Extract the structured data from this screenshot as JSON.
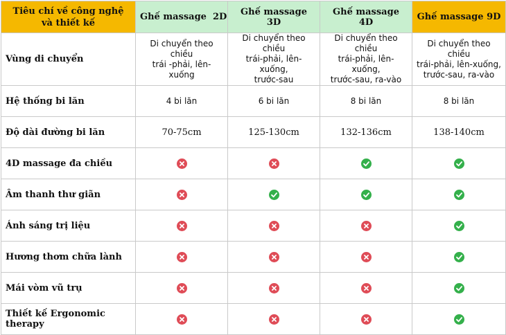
{
  "colors": {
    "header_gold": "#f5b800",
    "header_green": "#c8efcf",
    "no_icon": "#df4c57",
    "yes_icon": "#34b04b"
  },
  "header": {
    "criteria_line1": "Tiêu chí về công nghệ",
    "criteria_line2": "và thiết kế",
    "col_2d": "Ghế massage  2D",
    "col_3d": "Ghế massage 3D",
    "col_4d": "Ghế massage 4D",
    "col_9d": "Ghế massage 9D"
  },
  "rows": [
    {
      "label": "Vùng di chuyển",
      "v2d": [
        "Di chuyển theo chiều",
        "trái -phải, lên-xuống"
      ],
      "v3d": [
        "Di chuyển theo chiều",
        "trái-phải, lên-xuống,",
        "trước-sau"
      ],
      "v4d": [
        "Di chuyển theo chiều",
        "trái-phải, lên-xuống,",
        "trước-sau, ra-vào"
      ],
      "v9d": [
        "Di chuyển theo chiều",
        "trái-phải, lên-xuống,",
        "trước-sau, ra-vào"
      ]
    },
    {
      "label": "Hệ thống bi lăn",
      "v2d": "4 bi lăn",
      "v3d": "6 bi lăn",
      "v4d": "8 bi lăn",
      "v9d": "8 bi lăn"
    },
    {
      "label": "Độ dài đường bi lăn",
      "v2d": "70-75cm",
      "v3d": "125-130cm",
      "v4d": "132-136cm",
      "v9d": "138-140cm"
    },
    {
      "label": "4D massage đa chiều",
      "v2d": "no-icon",
      "v3d": "no-icon",
      "v4d": "check-icon",
      "v9d": "check-icon"
    },
    {
      "label": "Âm thanh thư giãn",
      "v2d": "no-icon",
      "v3d": "check-icon",
      "v4d": "check-icon",
      "v9d": "check-icon"
    },
    {
      "label": "Ánh sáng trị liệu",
      "v2d": "no-icon",
      "v3d": "no-icon",
      "v4d": "no-icon",
      "v9d": "check-icon"
    },
    {
      "label": "Hương thơm chữa lành",
      "v2d": "no-icon",
      "v3d": "no-icon",
      "v4d": "no-icon",
      "v9d": "check-icon"
    },
    {
      "label": "Mái vòm vũ trụ",
      "v2d": "no-icon",
      "v3d": "no-icon",
      "v4d": "no-icon",
      "v9d": "check-icon"
    },
    {
      "label": "Thiết kế Ergonomic therapy",
      "v2d": "no-icon",
      "v3d": "no-icon",
      "v4d": "no-icon",
      "v9d": "check-icon"
    }
  ]
}
